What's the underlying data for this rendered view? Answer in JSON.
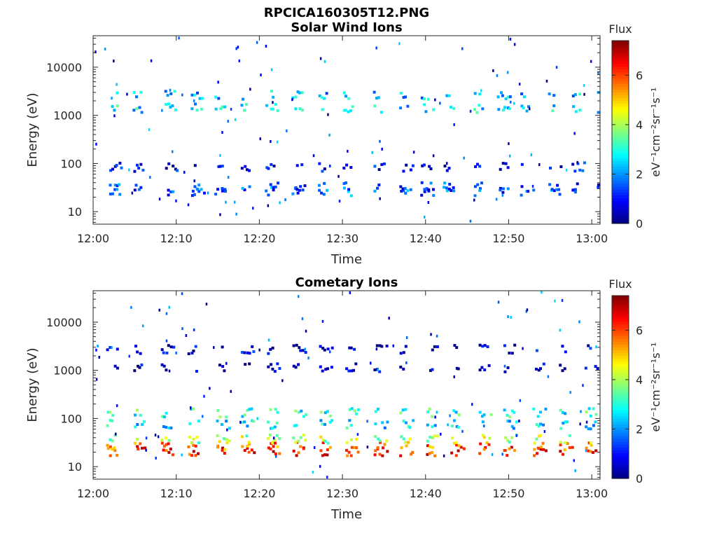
{
  "figure_title": "RPCICA160305T12.PNG",
  "colorbar": {
    "label": "Flux",
    "unit": "eV⁻¹cm⁻²sr⁻¹s⁻¹",
    "ticks": [
      "0",
      "2",
      "4",
      "6"
    ],
    "range": [
      0,
      7.4
    ],
    "colormap": "jet"
  },
  "chart_data": [
    {
      "type": "heatmap",
      "title": "Solar Wind Ions",
      "xlabel": "Time",
      "ylabel": "Energy (eV)",
      "xlim": [
        "12:00",
        "13:01"
      ],
      "ylim": [
        5.5,
        45000
      ],
      "yscale": "log",
      "xticks": [
        "12:00",
        "12:10",
        "12:20",
        "12:30",
        "12:40",
        "12:50",
        "13:00"
      ],
      "yticks": [
        "10",
        "100",
        "1000",
        "10000"
      ],
      "clim": [
        0,
        7.4
      ],
      "bands": [
        {
          "energy": 28,
          "value": 1.6
        },
        {
          "energy": 35,
          "value": 1.4
        },
        {
          "energy": 90,
          "value": 0.8
        },
        {
          "energy": 1500,
          "value": 2.6
        },
        {
          "energy": 2800,
          "value": 2.3
        }
      ],
      "cycle_start_min": [
        1.9,
        4.8,
        8.6,
        11.8,
        14.6,
        17.8,
        20.7,
        23.9,
        27.1,
        30.0,
        33.7,
        36.9,
        39.4,
        42.1,
        45.8,
        48.6,
        51.4,
        54.8,
        57.6,
        60.6
      ]
    },
    {
      "type": "heatmap",
      "title": "Cometary Ions",
      "xlabel": "Time",
      "ylabel": "Energy (eV)",
      "xlim": [
        "12:00",
        "13:01"
      ],
      "ylim": [
        5.5,
        45000
      ],
      "yscale": "log",
      "xticks": [
        "12:00",
        "12:10",
        "12:20",
        "12:30",
        "12:40",
        "12:50",
        "13:00"
      ],
      "yticks": [
        "10",
        "100",
        "1000",
        "10000"
      ],
      "clim": [
        0,
        7.4
      ],
      "bands": [
        {
          "energy": 22,
          "value": 6.2
        },
        {
          "energy": 28,
          "value": 5.8
        },
        {
          "energy": 40,
          "value": 4.0
        },
        {
          "energy": 80,
          "value": 2.6
        },
        {
          "energy": 140,
          "value": 3.0
        },
        {
          "energy": 2900,
          "value": 0.6
        },
        {
          "energy": 1200,
          "value": 0.4
        }
      ],
      "cycle_start_min": [
        1.6,
        4.9,
        8.1,
        11.4,
        14.8,
        17.8,
        20.9,
        24.0,
        27.2,
        30.4,
        33.8,
        36.9,
        40.1,
        43.0,
        46.4,
        49.4,
        52.9,
        56.1,
        59.2
      ]
    }
  ]
}
